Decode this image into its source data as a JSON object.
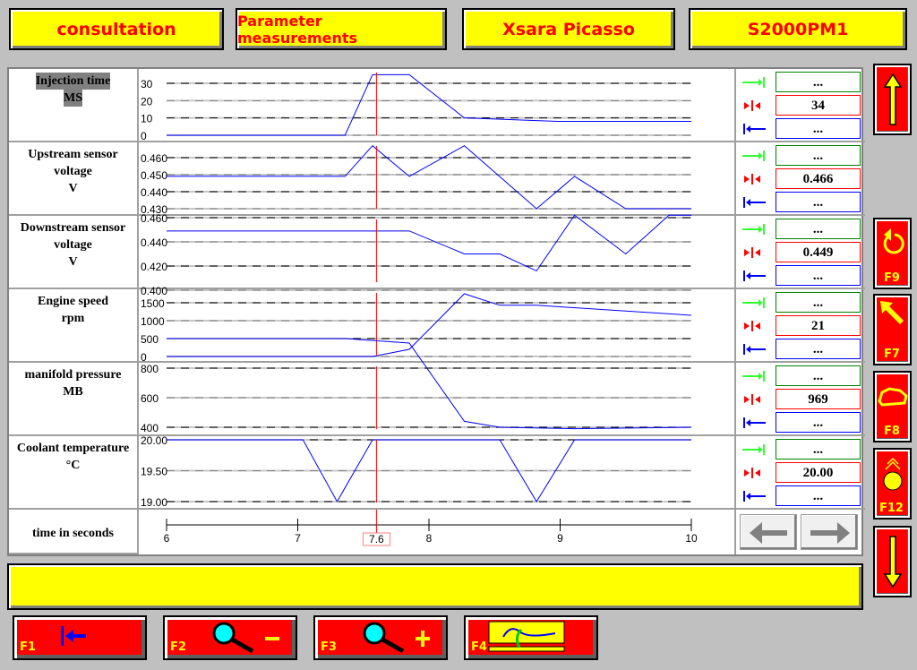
{
  "header": {
    "buttons": [
      "consultation",
      "Parameter measurements",
      "Xsara Picasso",
      "S2000PM1"
    ]
  },
  "colors": {
    "background": "#c0c0c0",
    "button_yellow": "#ffff00",
    "button_red": "#ff0000",
    "trace": "#0000ff",
    "cursor": "#ff0000",
    "max_box": "#008000",
    "current_box": "#ff0000",
    "min_box": "#0000ff"
  },
  "cursor_time": "7.6",
  "time_axis": {
    "label": "time in seconds",
    "ticks": [
      "6",
      "7",
      "8",
      "9",
      "10"
    ],
    "range": [
      6,
      10
    ]
  },
  "chart_data": [
    {
      "type": "line",
      "name_lines": [
        "Injection time",
        "MS"
      ],
      "yticks": [
        "30",
        "20",
        "10",
        "0"
      ],
      "ytick_values": [
        30,
        20,
        10,
        0
      ],
      "ylim": [
        0,
        35
      ],
      "x": [
        6,
        7.36,
        7.57,
        7.85,
        8.27,
        8.98,
        10
      ],
      "y": [
        0,
        0,
        35,
        35,
        10,
        8,
        8
      ],
      "readout": {
        "max": "...",
        "current": "34",
        "min": "..."
      }
    },
    {
      "type": "line",
      "name_lines": [
        "Upstream sensor",
        "voltage",
        "V"
      ],
      "yticks": [
        "0.460",
        "0.450",
        "0.440",
        "0.430"
      ],
      "ytick_values": [
        0.46,
        0.45,
        0.44,
        0.43
      ],
      "ylim": [
        0.43,
        0.468
      ],
      "x": [
        6,
        7.36,
        7.57,
        7.85,
        8.27,
        8.82,
        9.11,
        9.5,
        10
      ],
      "y": [
        0.449,
        0.449,
        0.467,
        0.449,
        0.467,
        0.43,
        0.449,
        0.43,
        0.43
      ],
      "readout": {
        "max": "...",
        "current": "0.466",
        "min": "..."
      }
    },
    {
      "type": "line",
      "name_lines": [
        "Downstream sensor",
        "voltage",
        "V"
      ],
      "yticks": [
        "0.460",
        "0.440",
        "0.420",
        "0.400"
      ],
      "ytick_values": [
        0.46,
        0.44,
        0.42,
        0.4
      ],
      "ylim": [
        0.4,
        0.466
      ],
      "x": [
        6,
        7.85,
        8.27,
        8.54,
        8.82,
        9.11,
        9.5,
        9.83,
        10
      ],
      "y": [
        0.449,
        0.449,
        0.43,
        0.43,
        0.416,
        0.462,
        0.43,
        0.462,
        0.462
      ],
      "readout": {
        "max": "...",
        "current": "0.449",
        "min": "..."
      }
    },
    {
      "type": "line",
      "name_lines": [
        "Engine speed",
        "rpm"
      ],
      "yticks": [
        "1500",
        "1000",
        "500",
        "0"
      ],
      "ytick_values": [
        1500,
        1000,
        500,
        0
      ],
      "ylim": [
        0,
        1800
      ],
      "x": [
        6,
        7.57,
        7.85,
        8.27,
        8.54,
        8.82,
        10
      ],
      "y": [
        0,
        0,
        200,
        1750,
        1430,
        1430,
        1150
      ],
      "readout": {
        "max": "...",
        "current": "21",
        "min": "..."
      }
    },
    {
      "type": "line",
      "name_lines": [
        "manifold pressure",
        "MB"
      ],
      "yticks": [
        "800",
        "600",
        "400"
      ],
      "ytick_values": [
        800,
        600,
        400
      ],
      "ylim": [
        400,
        1000
      ],
      "x": [
        6,
        7.36,
        7.85,
        8.27,
        8.54,
        9.11,
        10
      ],
      "y": [
        1000,
        1000,
        970,
        440,
        400,
        390,
        400
      ],
      "readout": {
        "max": "...",
        "current": "969",
        "min": "..."
      }
    },
    {
      "type": "line",
      "name_lines": [
        "Coolant temperature",
        "°C"
      ],
      "yticks": [
        "20.00",
        "19.50",
        "19.00"
      ],
      "ytick_values": [
        20,
        19.5,
        19
      ],
      "ylim": [
        19,
        20
      ],
      "x": [
        6,
        7.04,
        7.3,
        7.57,
        8.54,
        8.82,
        9.11,
        10
      ],
      "y": [
        20,
        20,
        19,
        20,
        20,
        19,
        20,
        20
      ],
      "readout": {
        "max": "...",
        "current": "20.00",
        "min": "..."
      }
    }
  ],
  "status_bar": {
    "text": ""
  },
  "side_buttons": [
    {
      "key": "",
      "icon": "arrow-up-icon"
    },
    {
      "key": "F9",
      "icon": "refresh-icon"
    },
    {
      "key": "F7",
      "icon": "arrow-up-left-icon"
    },
    {
      "key": "F8",
      "icon": "vehicle-icon"
    },
    {
      "key": "F12",
      "icon": "globe-signal-icon"
    },
    {
      "key": "",
      "icon": "arrow-down-icon"
    }
  ],
  "bottom_buttons": [
    {
      "key": "F1",
      "icon": "back-to-start-icon"
    },
    {
      "key": "F2",
      "icon": "zoom-out-icon"
    },
    {
      "key": "F3",
      "icon": "zoom-in-icon"
    },
    {
      "key": "F4",
      "icon": "graph-select-icon"
    }
  ]
}
